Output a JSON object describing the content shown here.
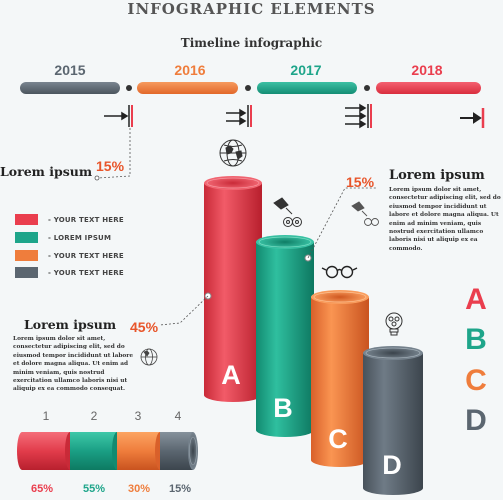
{
  "header": {
    "title": "INFOGRAPHIC ELEMENTS",
    "subtitle": "Timeline infographic"
  },
  "timeline": [
    {
      "year": "2015",
      "color": "#5b6670"
    },
    {
      "year": "2016",
      "color": "#ef7d3c"
    },
    {
      "year": "2017",
      "color": "#1ea58a"
    },
    {
      "year": "2018",
      "color": "#ea3e4e"
    }
  ],
  "left_note": {
    "heading": "Lorem ipsum",
    "percent": "15%"
  },
  "right_note": {
    "percent": "15%",
    "heading": "Lorem ipsum",
    "body": "Lorem ipsum dolor sit amet, consectetur adipiscing elit, sed do eiusmod tempor incididunt ut labore et dolore magna aliqua. Ut enim ad minim veniam, quis nostrud exercitation ullamco laboris nisi ut aliquip ex ea commodo."
  },
  "mid_note": {
    "heading": "Lorem ipsum",
    "percent": "45%",
    "body": "Lorem ipsum dolor sit amet, consectetur adipiscing elit, sed do eiusmod tempor incididunt ut labore et dolore magna aliqua. Ut enim ad minim veniam, quis nostrud exercitation ullamco laboris nisi ut aliquip ex ea commodo consequat."
  },
  "legend": [
    {
      "label": "- YOUR TEXT HERE",
      "color": "#ea3e4e"
    },
    {
      "label": "- LOREM IPSUM",
      "color": "#1ea58a"
    },
    {
      "label": "- YOUR TEXT HERE",
      "color": "#ef7d3c"
    },
    {
      "label": "- YOUR TEXT HERE",
      "color": "#5b6670"
    }
  ],
  "cylinders": [
    {
      "letter": "A",
      "color": "#ea3e4e"
    },
    {
      "letter": "B",
      "color": "#1ea58a"
    },
    {
      "letter": "C",
      "color": "#ef7d3c"
    },
    {
      "letter": "D",
      "color": "#5b6670"
    }
  ],
  "side_letters": [
    {
      "letter": "A",
      "color": "#ea3e4e"
    },
    {
      "letter": "B",
      "color": "#1ea58a"
    },
    {
      "letter": "C",
      "color": "#ef7d3c"
    },
    {
      "letter": "D",
      "color": "#5b6670"
    }
  ],
  "bottom_bar": [
    {
      "num": "1",
      "percent": "65%",
      "color": "#ea3e4e"
    },
    {
      "num": "2",
      "percent": "55%",
      "color": "#1ea58a"
    },
    {
      "num": "3",
      "percent": "30%",
      "color": "#ef7d3c"
    },
    {
      "num": "4",
      "percent": "15%",
      "color": "#5b6670"
    }
  ],
  "icons": [
    "globe-icon",
    "gears-icon",
    "glasses-icon",
    "lightbulb-icon",
    "arrow-icon"
  ]
}
